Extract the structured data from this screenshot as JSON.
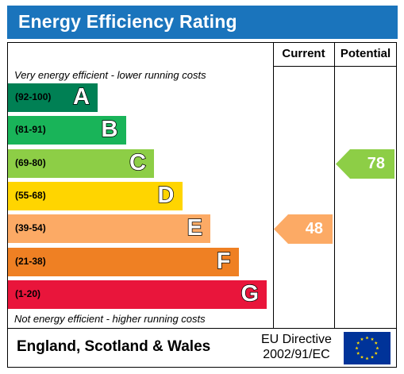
{
  "title": "Energy Efficiency Rating",
  "columns": {
    "current": "Current",
    "potential": "Potential"
  },
  "top_caption": "Very energy efficient - lower running costs",
  "bottom_caption": "Not energy efficient - higher running costs",
  "bands": [
    {
      "range": "(92-100)",
      "letter": "A",
      "color": "#008054"
    },
    {
      "range": "(81-91)",
      "letter": "B",
      "color": "#19b459"
    },
    {
      "range": "(69-80)",
      "letter": "C",
      "color": "#8dce46"
    },
    {
      "range": "(55-68)",
      "letter": "D",
      "color": "#ffd500"
    },
    {
      "range": "(39-54)",
      "letter": "E",
      "color": "#fcaa65"
    },
    {
      "range": "(21-38)",
      "letter": "F",
      "color": "#ef8023"
    },
    {
      "range": "(1-20)",
      "letter": "G",
      "color": "#e9153b"
    }
  ],
  "current": {
    "value": "48",
    "band": "E",
    "color": "#fcaa65"
  },
  "potential": {
    "value": "78",
    "band": "C",
    "color": "#8dce46"
  },
  "footer": {
    "region": "England, Scotland & Wales",
    "directive_line1": "EU Directive",
    "directive_line2": "2002/91/EC",
    "flag_icon": "eu-flag-icon"
  },
  "colors": {
    "title_bar": "#1a74bc",
    "flag_blue": "#003399",
    "flag_star": "#ffdd00"
  }
}
